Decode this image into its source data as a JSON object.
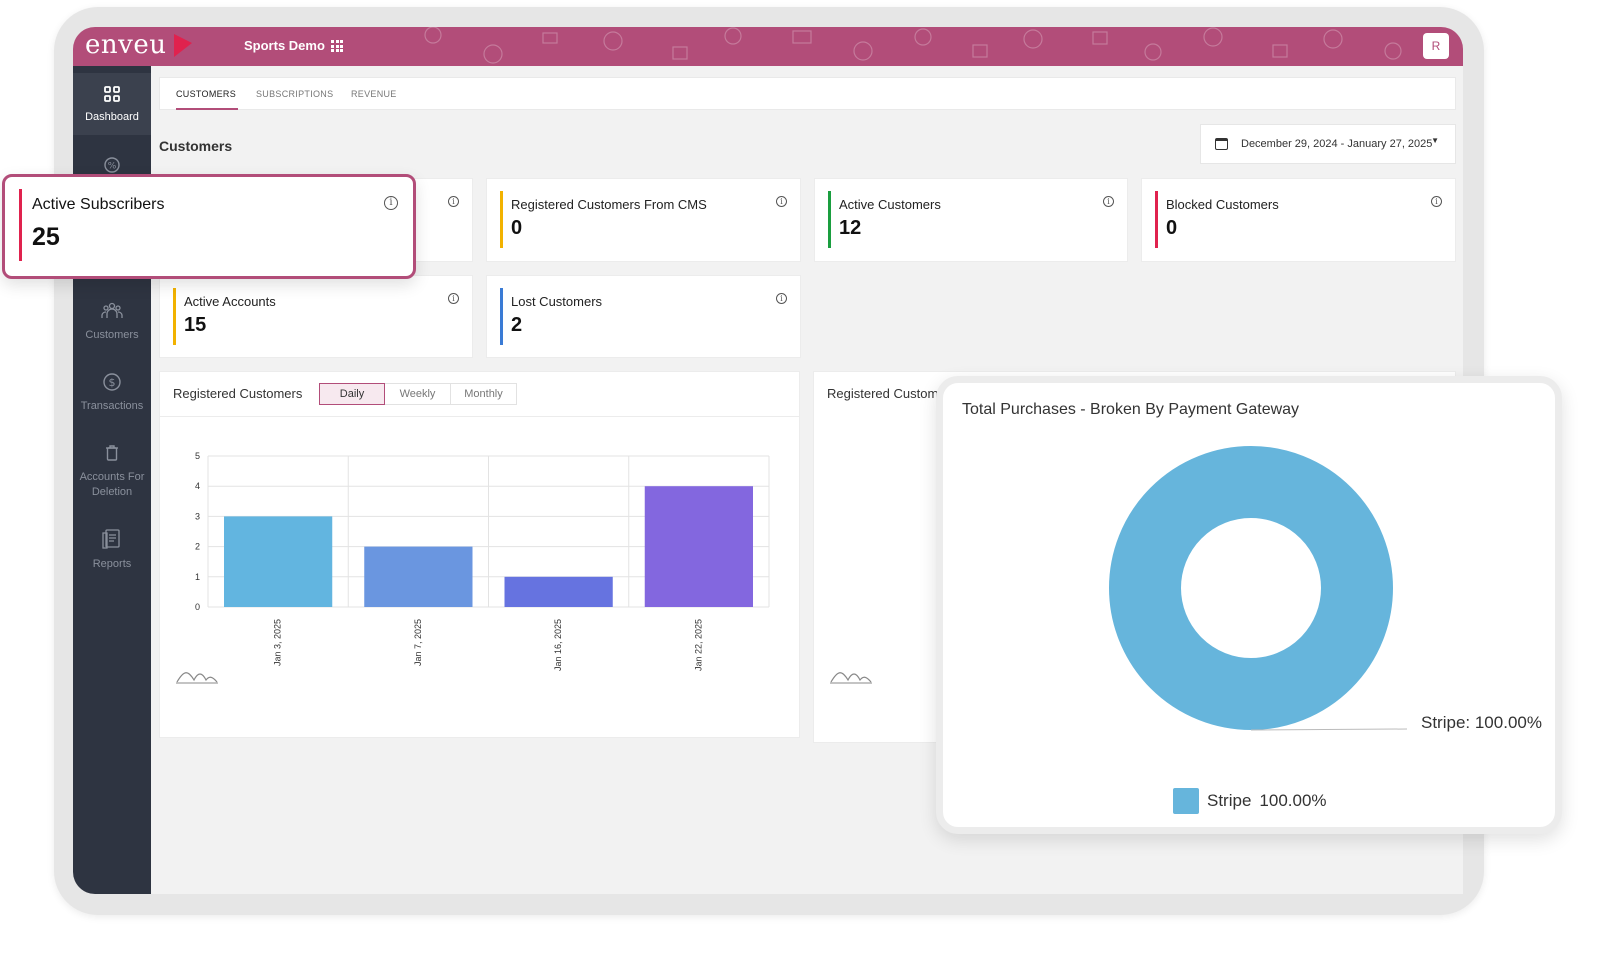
{
  "app": {
    "logo_text": "enveu",
    "tenant_name": "Sports Demo",
    "avatar_initial": "R",
    "brand_color": "#b24d79"
  },
  "sidebar": {
    "items": [
      {
        "label": "Dashboard",
        "icon": "grid-icon"
      },
      {
        "label": "",
        "icon": "coupon-icon"
      },
      {
        "label": "Customers",
        "icon": "customers-icon"
      },
      {
        "label": "Transactions",
        "icon": "dollar-icon"
      },
      {
        "label": "Accounts For Deletion",
        "icon": "trash-icon"
      },
      {
        "label": "Reports",
        "icon": "report-icon"
      }
    ]
  },
  "tabs": [
    {
      "label": "CUSTOMERS",
      "active": true
    },
    {
      "label": "SUBSCRIPTIONS",
      "active": false
    },
    {
      "label": "REVENUE",
      "active": false
    }
  ],
  "section_title": "Customers",
  "date_range": "December 29, 2024 - January 27, 2025",
  "stats": [
    {
      "label": "Registered Customers From CMS",
      "value": "0",
      "color": "#f2b200"
    },
    {
      "label": "Active Customers",
      "value": "12",
      "color": "#1a9e3f"
    },
    {
      "label": "Blocked Customers",
      "value": "0",
      "color": "#e0224e"
    },
    {
      "label": "Active Accounts",
      "value": "15",
      "color": "#f2b200"
    },
    {
      "label": "Lost Customers",
      "value": "2",
      "color": "#3a7bd5"
    }
  ],
  "highlight": {
    "label": "Active Subscribers",
    "value": "25",
    "color": "#e0224e"
  },
  "registered_panel": {
    "title": "Registered Customers",
    "periods": [
      "Daily",
      "Weekly",
      "Monthly"
    ],
    "active_period": "Daily"
  },
  "second_panel_title": "Registered Custom",
  "chart_data": [
    {
      "type": "bar",
      "title": "",
      "categories": [
        "Jan 3, 2025",
        "Jan 7, 2025",
        "Jan 16, 2025",
        "Jan 22, 2025"
      ],
      "values": [
        3,
        2,
        1,
        4
      ],
      "colors": [
        "#62b5e0",
        "#6a96e0",
        "#6673e0",
        "#8367df"
      ],
      "ylim": [
        0,
        5
      ],
      "yticks": [
        "0",
        "1",
        "2",
        "3",
        "4",
        "5"
      ],
      "grid": true
    },
    {
      "type": "pie",
      "title": "Total Purchases - Broken By Payment Gateway",
      "labels": [
        "Stripe"
      ],
      "values": [
        100.0
      ],
      "value_labels": [
        "100.00%"
      ],
      "colors": [
        "#66b5dc"
      ],
      "donut": true,
      "callout": "Stripe: 100.00%",
      "legend": {
        "label": "Stripe",
        "value": "100.00%",
        "placement": "bottom"
      }
    }
  ]
}
